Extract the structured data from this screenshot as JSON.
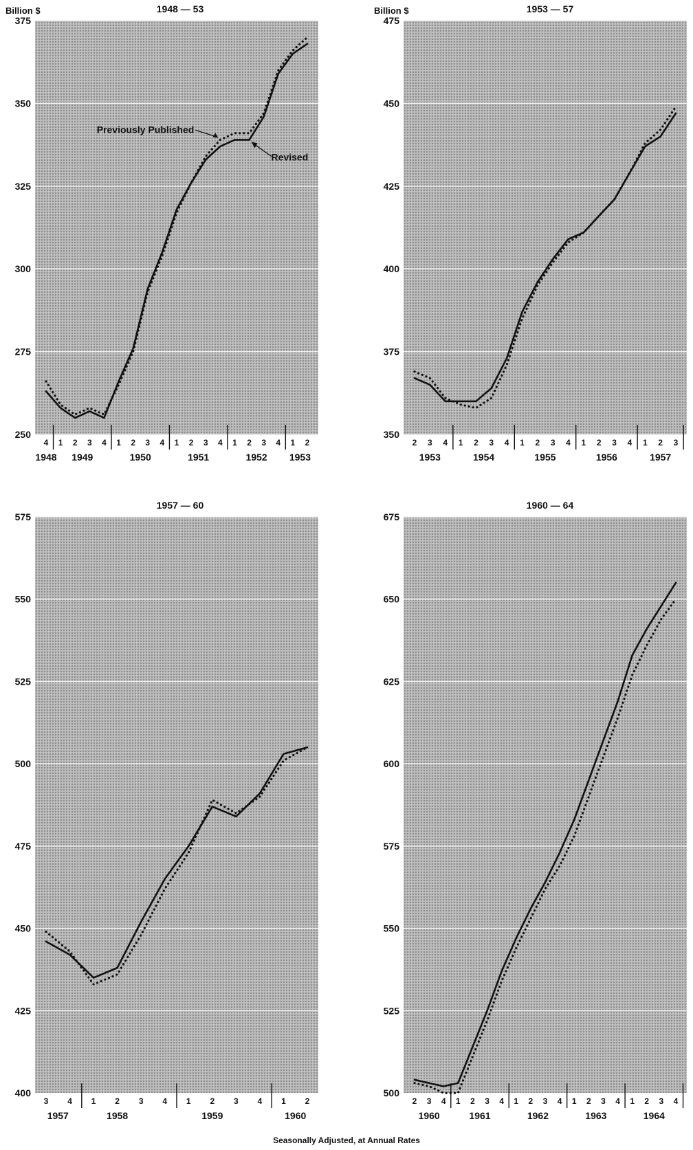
{
  "unit_label": "Billion $",
  "caption": "Seasonally Adjusted, at Annual Rates",
  "legend": {
    "previous": "Previously Published",
    "revised": "Revised"
  },
  "colors": {
    "panel_bg": "#b4b4b4",
    "grid": "#f2f2f2",
    "revised_line": "#111111",
    "previous_line": "#111111"
  },
  "chart_data": [
    {
      "type": "line",
      "title": "1948 — 53",
      "unit_label": "Billion $",
      "ylim": [
        250,
        375
      ],
      "yticks": [
        250,
        275,
        300,
        325,
        350,
        375
      ],
      "grid": true,
      "quarters": [
        "4",
        "1",
        "2",
        "3",
        "4",
        "1",
        "2",
        "3",
        "4",
        "1",
        "2",
        "3",
        "4",
        "1",
        "2",
        "3",
        "4",
        "1",
        "2"
      ],
      "years": [
        {
          "label": "1948",
          "at": 0
        },
        {
          "label": "1949",
          "at": 2.5
        },
        {
          "label": "1950",
          "at": 6.5
        },
        {
          "label": "1951",
          "at": 10.5
        },
        {
          "label": "1952",
          "at": 14.5
        },
        {
          "label": "1953",
          "at": 17.5
        }
      ],
      "year_boundaries": [
        0.5,
        4.5,
        8.5,
        12.5,
        16.5
      ],
      "series": [
        {
          "name": "Revised",
          "style": "solid",
          "values": [
            263,
            258,
            255,
            257,
            255,
            266,
            276,
            294,
            305,
            318,
            326,
            333,
            337,
            339,
            339,
            346,
            359,
            365,
            368
          ]
        },
        {
          "name": "Previously Published",
          "style": "dotted",
          "values": [
            266,
            259,
            256,
            258,
            256,
            265,
            275,
            293,
            304,
            317,
            326,
            334,
            339,
            341,
            341,
            347,
            360,
            366,
            370
          ]
        }
      ],
      "annotations": [
        {
          "text": "Previously Published",
          "target": "Previously Published"
        },
        {
          "text": "Revised",
          "target": "Revised"
        }
      ]
    },
    {
      "type": "line",
      "title": "1953 — 57",
      "unit_label": "Billion $",
      "ylim": [
        350,
        475
      ],
      "yticks": [
        350,
        375,
        400,
        425,
        450,
        475
      ],
      "grid": true,
      "quarters": [
        "2",
        "3",
        "4",
        "1",
        "2",
        "3",
        "4",
        "1",
        "2",
        "3",
        "4",
        "1",
        "2",
        "3",
        "4",
        "1",
        "2",
        "3"
      ],
      "years": [
        {
          "label": "1953",
          "at": 1
        },
        {
          "label": "1954",
          "at": 4.5
        },
        {
          "label": "1955",
          "at": 8.5
        },
        {
          "label": "1956",
          "at": 12.5
        },
        {
          "label": "1957",
          "at": 16
        }
      ],
      "year_boundaries": [
        2.5,
        6.5,
        10.5,
        14.5,
        17.5
      ],
      "series": [
        {
          "name": "Revised",
          "style": "solid",
          "values": [
            367,
            365,
            360,
            360,
            360,
            364,
            373,
            387,
            396,
            403,
            409,
            411,
            416,
            421,
            429,
            437,
            440,
            447
          ]
        },
        {
          "name": "Previously Published",
          "style": "dotted",
          "values": [
            369,
            367,
            361,
            359,
            358,
            361,
            371,
            385,
            395,
            402,
            408,
            411,
            416,
            421,
            429,
            438,
            442,
            449
          ]
        }
      ]
    },
    {
      "type": "line",
      "title": "1957 — 60",
      "ylim": [
        400,
        575
      ],
      "yticks": [
        400,
        425,
        450,
        475,
        500,
        525,
        550,
        575
      ],
      "grid": true,
      "quarters": [
        "3",
        "4",
        "1",
        "2",
        "3",
        "4",
        "1",
        "2",
        "3",
        "4",
        "1",
        "2"
      ],
      "years": [
        {
          "label": "1957",
          "at": 0.5
        },
        {
          "label": "1958",
          "at": 3
        },
        {
          "label": "1959",
          "at": 7
        },
        {
          "label": "1960",
          "at": 10.5
        }
      ],
      "year_boundaries": [
        1.5,
        5.5,
        9.5
      ],
      "series": [
        {
          "name": "Revised",
          "style": "solid",
          "values": [
            446,
            442,
            435,
            438,
            452,
            465,
            475,
            487,
            484,
            491,
            503,
            505
          ]
        },
        {
          "name": "Previously Published",
          "style": "dotted",
          "values": [
            449,
            443,
            433,
            436,
            448,
            462,
            473,
            489,
            485,
            490,
            501,
            505
          ]
        }
      ]
    },
    {
      "type": "line",
      "title": "1960 — 64",
      "ylim": [
        500,
        675
      ],
      "yticks": [
        500,
        525,
        550,
        575,
        600,
        625,
        650,
        675
      ],
      "grid": true,
      "quarters": [
        "2",
        "3",
        "4",
        "1",
        "2",
        "3",
        "4",
        "1",
        "2",
        "3",
        "4",
        "1",
        "2",
        "3",
        "4",
        "1",
        "2",
        "3",
        "4"
      ],
      "years": [
        {
          "label": "1960",
          "at": 1
        },
        {
          "label": "1961",
          "at": 4.5
        },
        {
          "label": "1962",
          "at": 8.5
        },
        {
          "label": "1963",
          "at": 12.5
        },
        {
          "label": "1964",
          "at": 16.5
        }
      ],
      "year_boundaries": [
        2.5,
        6.5,
        10.5,
        14.5,
        18.5
      ],
      "series": [
        {
          "name": "Revised",
          "style": "solid",
          "values": [
            504,
            503,
            502,
            503,
            514,
            525,
            537,
            547,
            556,
            564,
            573,
            583,
            595,
            607,
            619,
            633,
            641,
            648,
            655
          ]
        },
        {
          "name": "Previously Published",
          "style": "dotted",
          "values": [
            503,
            502,
            500,
            500,
            511,
            522,
            534,
            544,
            553,
            562,
            569,
            578,
            590,
            602,
            614,
            627,
            636,
            644,
            650
          ]
        }
      ]
    }
  ]
}
